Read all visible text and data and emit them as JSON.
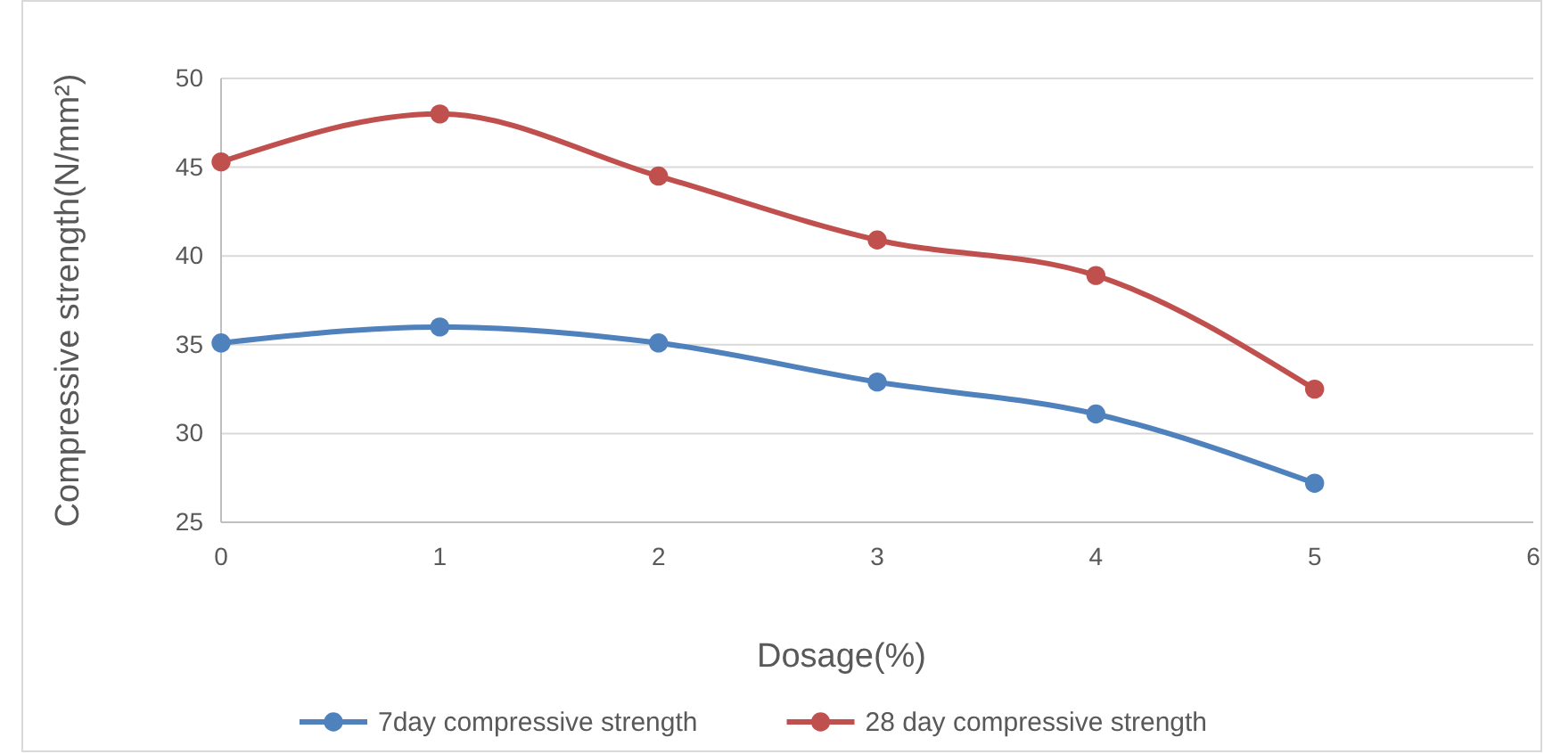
{
  "chart_data": {
    "type": "line",
    "xlabel": "Dosage(%)",
    "ylabel": "Compressive strength(N/mm²)",
    "x": [
      0,
      1,
      2,
      3,
      4,
      5
    ],
    "series": [
      {
        "name": "7day compressive strength",
        "color": "#4f81bd",
        "values": [
          35.1,
          36.0,
          35.1,
          32.9,
          31.1,
          27.2
        ]
      },
      {
        "name": "28 day compressive strength",
        "color": "#c0504d",
        "values": [
          45.3,
          48.0,
          44.5,
          40.9,
          38.9,
          32.5
        ]
      }
    ],
    "xlim": [
      0,
      6
    ],
    "xticks": [
      0,
      1,
      2,
      3,
      4,
      5,
      6
    ],
    "ylim": [
      25,
      50
    ],
    "yticks": [
      25,
      30,
      35,
      40,
      45,
      50
    ],
    "grid": "y",
    "legend": "bottom",
    "marker": "circle",
    "line_style": "solid"
  }
}
